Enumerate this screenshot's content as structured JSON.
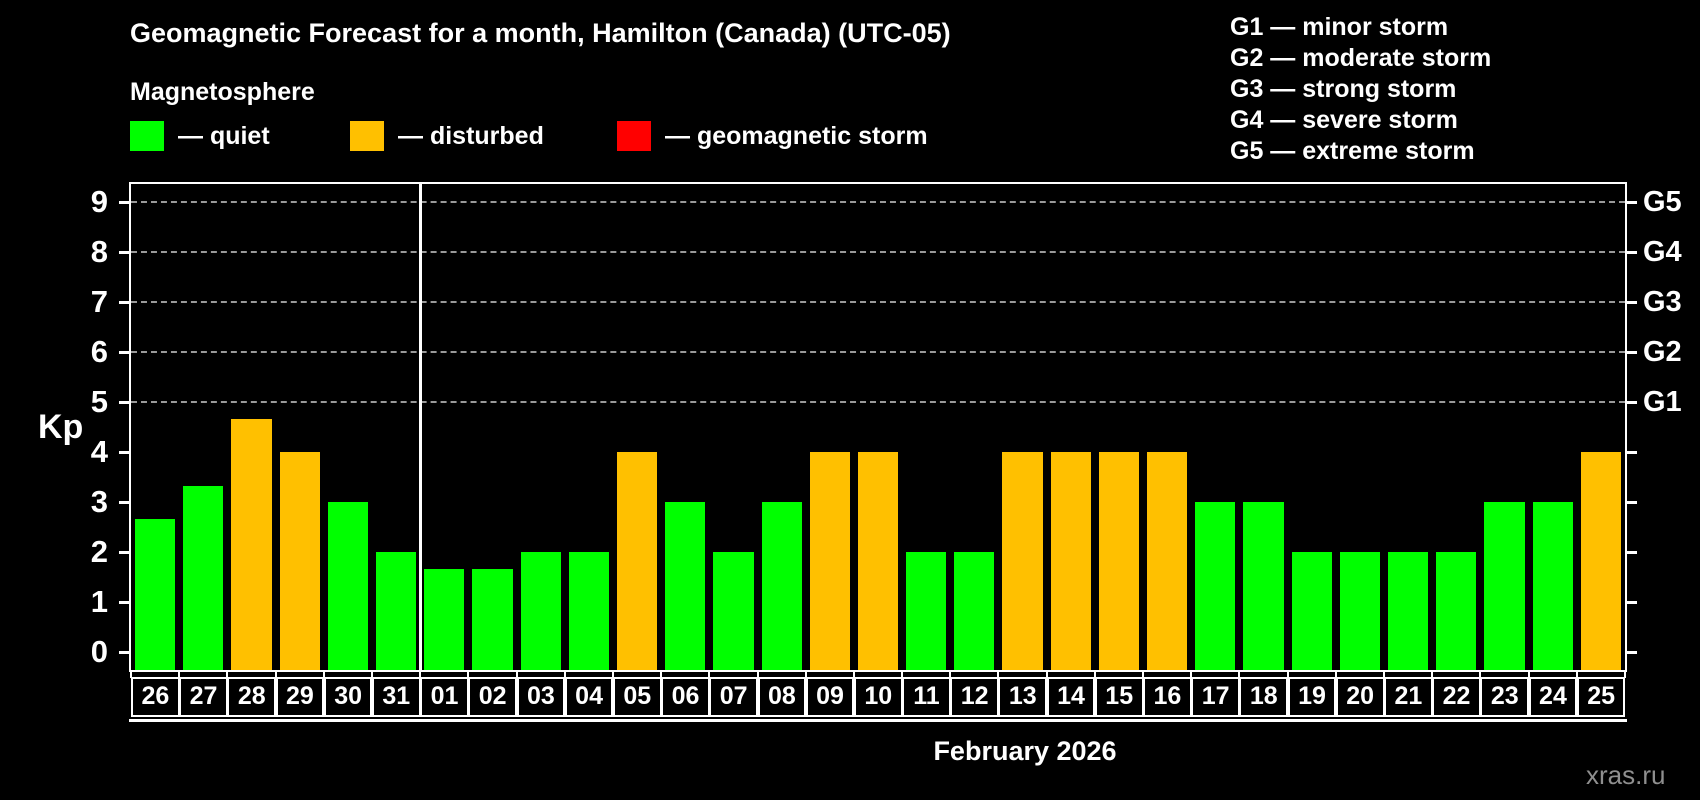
{
  "header": {
    "title": "Geomagnetic Forecast for a month, Hamilton (Canada) (UTC-05)",
    "subtitle": "Magnetosphere",
    "legend": [
      {
        "label": "— quiet",
        "color": "#00ff00"
      },
      {
        "label": "— disturbed",
        "color": "#ffc000"
      },
      {
        "label": "— geomagnetic storm",
        "color": "#ff0000"
      }
    ],
    "g_scale": [
      "G1 — minor storm",
      "G2 — moderate storm",
      "G3 — strong storm",
      "G4 — severe storm",
      "G5 — extreme storm"
    ]
  },
  "chart_data": {
    "type": "bar",
    "title": "Geomagnetic Forecast for a month, Hamilton (Canada) (UTC-05)",
    "xlabel": "February 2026",
    "ylabel": "Kp",
    "ylim": [
      0,
      9
    ],
    "y_ticks": [
      0,
      1,
      2,
      3,
      4,
      5,
      6,
      7,
      8,
      9
    ],
    "grid": "horizontal dashed lines at Kp 5-9 only",
    "legend_position": "top-left",
    "right_axis": [
      {
        "label": "G5",
        "kp": 9
      },
      {
        "label": "G4",
        "kp": 8
      },
      {
        "label": "G3",
        "kp": 7
      },
      {
        "label": "G2",
        "kp": 6
      },
      {
        "label": "G1",
        "kp": 5
      }
    ],
    "categories": [
      "26",
      "27",
      "28",
      "29",
      "30",
      "31",
      "01",
      "02",
      "03",
      "04",
      "05",
      "06",
      "07",
      "08",
      "09",
      "10",
      "11",
      "12",
      "13",
      "14",
      "15",
      "16",
      "17",
      "18",
      "19",
      "20",
      "21",
      "22",
      "23",
      "24",
      "25"
    ],
    "values": [
      2.67,
      3.33,
      4.67,
      4,
      3,
      2,
      1.67,
      1.67,
      2,
      2,
      4,
      3,
      2,
      3,
      4,
      4,
      2,
      2,
      4,
      4,
      4,
      4,
      3,
      3,
      2,
      2,
      2,
      2,
      3,
      3,
      4
    ],
    "statuses": [
      "quiet",
      "quiet",
      "disturbed",
      "disturbed",
      "quiet",
      "quiet",
      "quiet",
      "quiet",
      "quiet",
      "quiet",
      "disturbed",
      "quiet",
      "quiet",
      "quiet",
      "disturbed",
      "disturbed",
      "quiet",
      "quiet",
      "disturbed",
      "disturbed",
      "disturbed",
      "disturbed",
      "quiet",
      "quiet",
      "quiet",
      "quiet",
      "quiet",
      "quiet",
      "quiet",
      "quiet",
      "disturbed"
    ],
    "month_separator_after_index": 5,
    "colors": {
      "quiet": "#00ff00",
      "disturbed": "#ffc000",
      "storm": "#ff0000"
    }
  },
  "footer": {
    "month_label": "February 2026",
    "watermark": "xras.ru"
  }
}
